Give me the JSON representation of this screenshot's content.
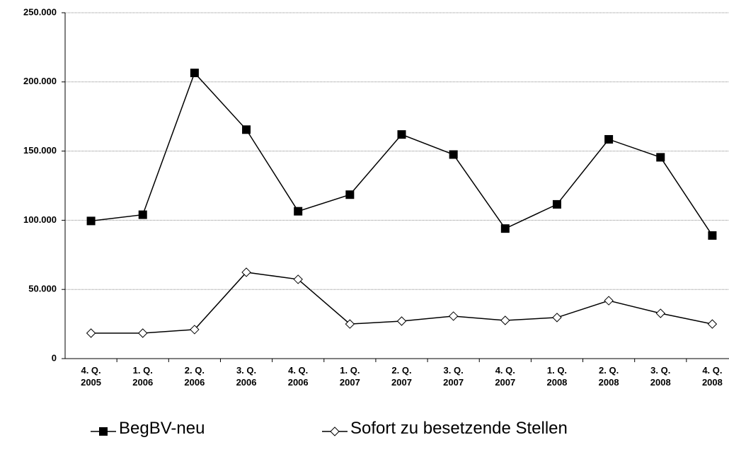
{
  "chart_data": {
    "type": "line",
    "categories": [
      "4. Q.\n2005",
      "1. Q.\n2006",
      "2. Q.\n2006",
      "3. Q.\n2006",
      "4. Q.\n2006",
      "1. Q.\n2007",
      "2. Q.\n2007",
      "3. Q.\n2007",
      "4. Q.\n2007",
      "1. Q.\n2008",
      "2. Q.\n2008",
      "3. Q.\n2008",
      "4. Q.\n2008"
    ],
    "series": [
      {
        "name": "BegBV-neu",
        "color": "#000000",
        "marker": "filled-square",
        "values": [
          99500,
          104000,
          206500,
          165500,
          106500,
          118500,
          162000,
          147500,
          94000,
          111500,
          158500,
          145500,
          89000
        ]
      },
      {
        "name": "Sofort zu besetzende Stellen",
        "color": "#000000",
        "marker": "open-diamond",
        "values": [
          18400,
          18400,
          21000,
          62400,
          57300,
          25000,
          27100,
          30700,
          27600,
          29700,
          41900,
          32700,
          25000
        ]
      }
    ],
    "ylim": [
      0,
      250000
    ],
    "yticks": [
      0,
      {
        "value": 50000,
        "label": "50.000"
      },
      {
        "value": 100000,
        "label": "100.000"
      },
      {
        "value": 150000,
        "label": "150.000"
      },
      {
        "value": 200000,
        "label": "200.000"
      },
      {
        "value": 250000,
        "label": "250.000"
      }
    ],
    "grid": true
  }
}
